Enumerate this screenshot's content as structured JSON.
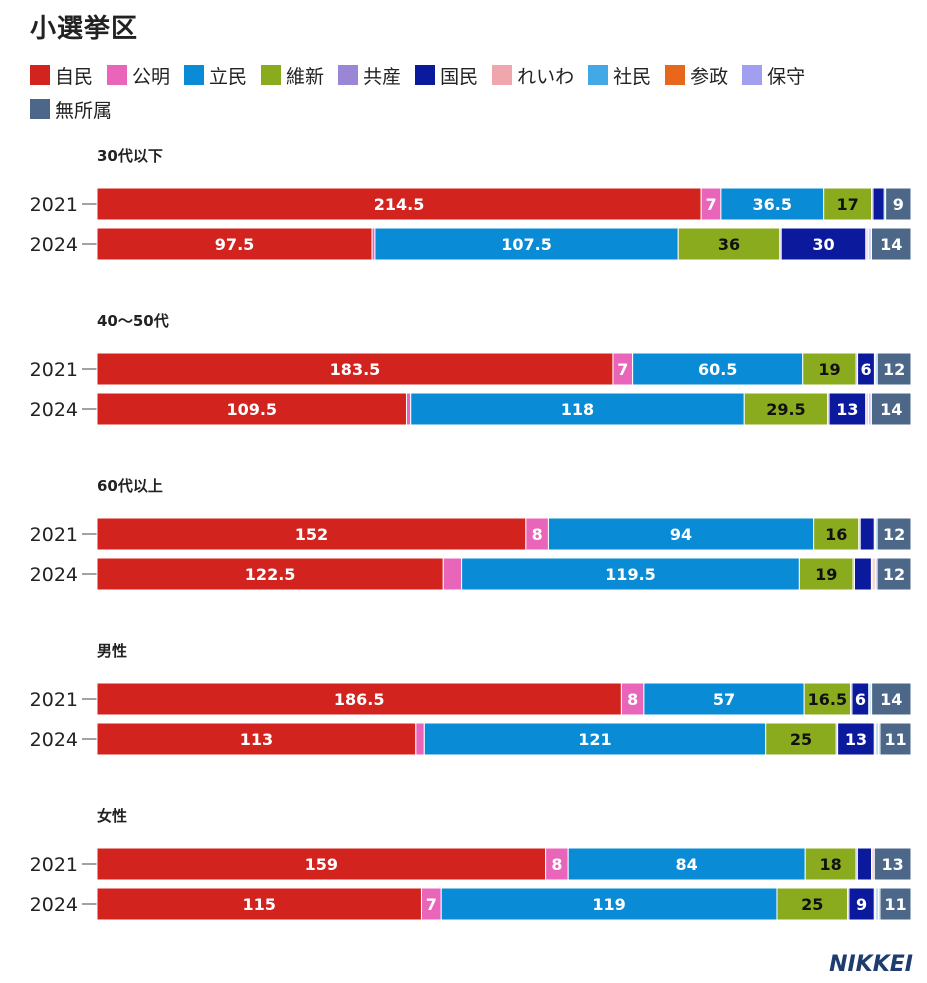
{
  "title": "小選挙区",
  "logo": "NIKKEI",
  "colors": {
    "自民": "#d2231e",
    "公明": "#e865b9",
    "立民": "#0a8bd6",
    "維新": "#8aab1d",
    "共産": "#9a86d4",
    "国民": "#0b1a9c",
    "れいわ": "#f0a6ad",
    "社民": "#42a8e6",
    "参政": "#e8681b",
    "保守": "#a29ff0",
    "無所属": "#4d6788"
  },
  "legend": [
    "自民",
    "公明",
    "立民",
    "維新",
    "共産",
    "国民",
    "れいわ",
    "社民",
    "参政",
    "保守",
    "無所属"
  ],
  "chart_data": {
    "type": "bar",
    "stacked": true,
    "orientation": "horizontal",
    "parties": [
      "自民",
      "公明",
      "立民",
      "維新",
      "共産",
      "国民",
      "れいわ",
      "社民",
      "参政",
      "保守",
      "無所属"
    ],
    "groups": [
      {
        "label": "30代以下",
        "rows": [
          {
            "year": "2021",
            "values": [
              214.5,
              7,
              36.5,
              17,
              0.5,
              4,
              0,
              0.5,
              0,
              0,
              9
            ],
            "labels": [
              "214.5",
              "7",
              "36.5",
              "17",
              "",
              "",
              "",
              "",
              "",
              "",
              "9"
            ]
          },
          {
            "year": "2024",
            "values": [
              97.5,
              1,
              107.5,
              36,
              0.5,
              30,
              0.5,
              0.5,
              0.5,
              0.5,
              14
            ],
            "labels": [
              "97.5",
              "",
              "107.5",
              "36",
              "",
              "30",
              "",
              "",
              "",
              "",
              "14"
            ]
          }
        ]
      },
      {
        "label": "40～50代",
        "rows": [
          {
            "year": "2021",
            "values": [
              183.5,
              7,
              60.5,
              19,
              0.5,
              6,
              0.5,
              0.5,
              0,
              0,
              12
            ],
            "labels": [
              "183.5",
              "7",
              "60.5",
              "19",
              "",
              "6",
              "",
              "",
              "",
              "",
              "12"
            ]
          },
          {
            "year": "2024",
            "values": [
              109.5,
              1.5,
              118,
              29.5,
              0.5,
              13,
              0.5,
              0.5,
              0.5,
              0.5,
              14
            ],
            "labels": [
              "109.5",
              "",
              "118",
              "29.5",
              "",
              "13",
              "",
              "",
              "",
              "",
              "14"
            ]
          }
        ]
      },
      {
        "label": "60代以上",
        "rows": [
          {
            "year": "2021",
            "values": [
              152,
              8,
              94,
              16,
              0.5,
              5,
              0.5,
              0.5,
              0,
              0,
              12
            ],
            "labels": [
              "152",
              "8",
              "94",
              "16",
              "",
              "",
              "",
              "",
              "",
              "",
              "12"
            ]
          },
          {
            "year": "2024",
            "values": [
              122.5,
              6.5,
              119.5,
              19,
              0.5,
              6,
              0.5,
              0.5,
              0.5,
              0.5,
              12
            ],
            "labels": [
              "122.5",
              "",
              "119.5",
              "19",
              "",
              "",
              "",
              "",
              "",
              "",
              "12"
            ]
          }
        ]
      },
      {
        "label": "男性",
        "rows": [
          {
            "year": "2021",
            "values": [
              186.5,
              8,
              57,
              16.5,
              0.5,
              6,
              0.5,
              0.5,
              0,
              0,
              14
            ],
            "labels": [
              "186.5",
              "8",
              "57",
              "16.5",
              "",
              "6",
              "",
              "",
              "",
              "",
              "14"
            ]
          },
          {
            "year": "2024",
            "values": [
              113,
              3,
              121,
              25,
              0.5,
              13,
              0.5,
              0.5,
              0.5,
              0.5,
              11
            ],
            "labels": [
              "113",
              "",
              "121",
              "25",
              "",
              "13",
              "",
              "",
              "",
              "",
              "11"
            ]
          }
        ]
      },
      {
        "label": "女性",
        "rows": [
          {
            "year": "2021",
            "values": [
              159,
              8,
              84,
              18,
              0.5,
              5,
              0.5,
              0.5,
              0,
              0,
              13
            ],
            "labels": [
              "159",
              "8",
              "84",
              "18",
              "",
              "",
              "",
              "",
              "",
              "",
              "13"
            ]
          },
          {
            "year": "2024",
            "values": [
              115,
              7,
              119,
              25,
              0.5,
              9,
              0.5,
              0.5,
              0.5,
              0.5,
              11
            ],
            "labels": [
              "115",
              "7",
              "119",
              "25",
              "",
              "9",
              "",
              "",
              "",
              "",
              "11"
            ]
          }
        ]
      }
    ]
  }
}
